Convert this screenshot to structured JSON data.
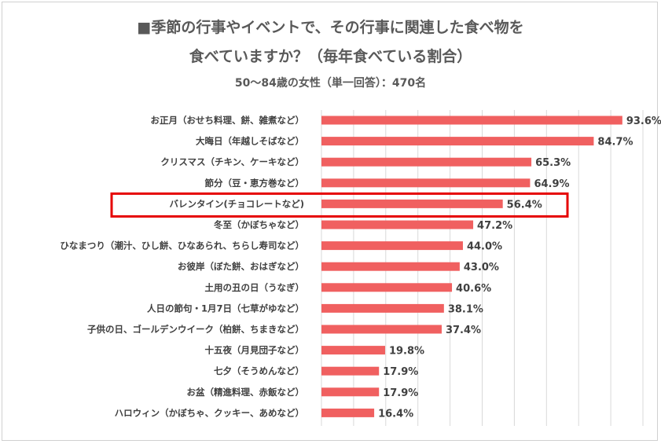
{
  "chart_data": {
    "type": "bar",
    "orientation": "horizontal",
    "title_line1": "■季節の行事やイベントで、その行事に関連した食べ物を",
    "title_line2": "食べていますか？（毎年食べている割合）",
    "subtitle": "50～84歳の女性（単一回答）：470名",
    "categories": [
      "お正月（おせち料理、餅、雑煮など）",
      "大晦日（年越しそばなど）",
      "クリスマス（チキン、ケーキなど）",
      "節分（豆・恵方巻など）",
      "バレンタイン(チョコレートなど)",
      "冬至（かぼちゃなど）",
      "ひなまつり（潮汁、ひし餅、ひなあられ、ちらし寿司など）",
      "お彼岸（ぼた餅、おはぎなど）",
      "土用の丑の日（うなぎ）",
      "人日の節句・1月7日（七草がゆなど）",
      "子供の日、ゴールデンウイーク（柏餅、ちまきなど）",
      "十五夜（月見団子など）",
      "七夕（そうめんなど）",
      "お盆（精進料理、赤飯など）",
      "ハロウィン（かぼちゃ、クッキー、あめなど）"
    ],
    "values": [
      93.6,
      84.7,
      65.3,
      64.9,
      56.4,
      47.2,
      44.0,
      43.0,
      40.6,
      38.1,
      37.4,
      19.8,
      17.9,
      17.9,
      16.4
    ],
    "value_labels": [
      "93.6%",
      "84.7%",
      "65.3%",
      "64.9%",
      "56.4%",
      "47.2%",
      "44.0%",
      "43.0%",
      "40.6%",
      "38.1%",
      "37.4%",
      "19.8%",
      "17.9%",
      "17.9%",
      "16.4%"
    ],
    "xlim": [
      0,
      100
    ],
    "grid": true,
    "highlighted_category": "バレンタイン(チョコレートなど)",
    "colors": {
      "bar": "#f06060",
      "highlight_box": "#e60000",
      "grid": "#d9d9d9",
      "text": "#404040"
    }
  }
}
